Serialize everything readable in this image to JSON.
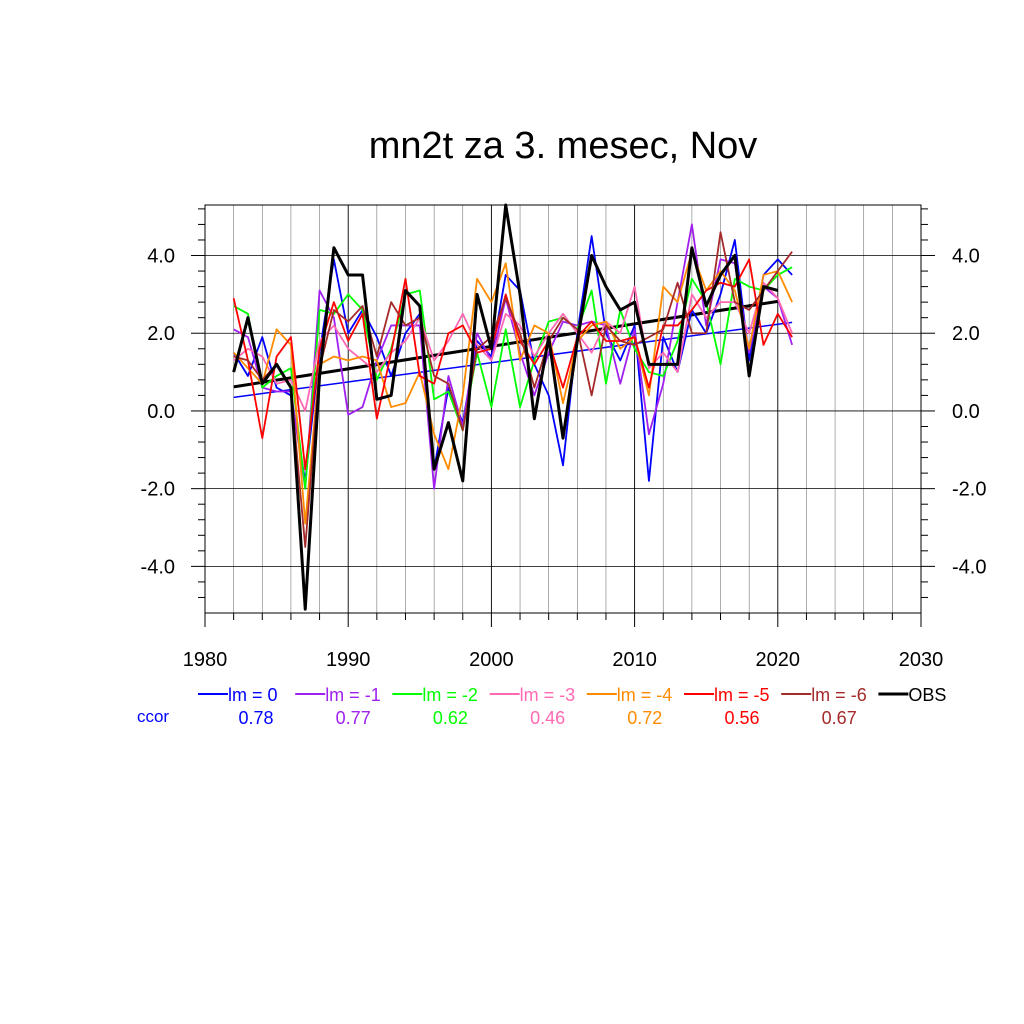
{
  "chart_data": {
    "type": "line",
    "title": "mn2t za 3. mesec, Nov",
    "xlabel": "",
    "ylabel": "",
    "xlim": [
      1980,
      2030
    ],
    "ylim": [
      -5.2,
      5.3
    ],
    "xticks": [
      1980,
      1990,
      2000,
      2010,
      2020,
      2030
    ],
    "xtick_labels": [
      "1980",
      "1990",
      "2000",
      "2010",
      "2020",
      "2030"
    ],
    "yticks": [
      -4,
      -2,
      0,
      2,
      4
    ],
    "ytick_labels": [
      "-4.0",
      "-2.0",
      "0.0",
      "2.0",
      "4.0"
    ],
    "grid": true,
    "x": [
      1982,
      1983,
      1984,
      1985,
      1986,
      1987,
      1988,
      1989,
      1990,
      1991,
      1992,
      1993,
      1994,
      1995,
      1996,
      1997,
      1998,
      1999,
      2000,
      2001,
      2002,
      2003,
      2004,
      2005,
      2006,
      2007,
      2008,
      2009,
      2010,
      2011,
      2012,
      2013,
      2014,
      2015,
      2016,
      2017,
      2018,
      2019,
      2020,
      2021
    ],
    "series": [
      {
        "name": "lm = 0",
        "color": "#0000ff",
        "ccor": "0.78",
        "values": [
          1.5,
          0.9,
          1.9,
          0.6,
          0.4,
          -1.8,
          1.5,
          3.9,
          2.0,
          2.6,
          1.9,
          0.9,
          2.0,
          2.5,
          -1.5,
          0.6,
          -0.3,
          1.8,
          1.4,
          3.5,
          3.1,
          1.2,
          0.4,
          -1.4,
          2.0,
          4.5,
          2.0,
          1.3,
          2.2,
          -1.8,
          1.9,
          1.0,
          2.6,
          2.0,
          3.0,
          4.4,
          1.3,
          3.5,
          3.9,
          3.5
        ],
        "trend": [
          0.35,
          2.28
        ]
      },
      {
        "name": "lm = -1",
        "color": "#a020f0",
        "ccor": "0.77",
        "values": [
          2.1,
          1.9,
          0.6,
          0.5,
          0.5,
          -2.0,
          3.1,
          2.4,
          -0.1,
          0.1,
          1.3,
          2.2,
          2.2,
          2.2,
          -2.0,
          0.9,
          -0.4,
          2.0,
          1.3,
          2.9,
          1.5,
          0.4,
          1.5,
          2.3,
          2.2,
          2.3,
          2.2,
          0.7,
          2.1,
          -0.6,
          0.7,
          2.8,
          4.8,
          2.2,
          3.9,
          3.8,
          1.5,
          3.2,
          2.9,
          1.7
        ]
      },
      {
        "name": "lm = -2",
        "color": "#00ff00",
        "ccor": "0.62",
        "values": [
          2.7,
          2.5,
          0.6,
          0.9,
          1.1,
          -2.0,
          2.6,
          2.5,
          3.0,
          2.6,
          0.8,
          1.6,
          3.0,
          3.1,
          0.3,
          0.5,
          -0.5,
          1.5,
          0.1,
          2.1,
          0.1,
          1.3,
          2.3,
          2.4,
          2.1,
          3.1,
          0.7,
          2.6,
          1.6,
          1.0,
          0.9,
          1.8,
          3.4,
          2.8,
          1.2,
          3.4,
          3.2,
          3.1,
          3.5,
          3.7
        ]
      },
      {
        "name": "lm = -3",
        "color": "#ff69b4",
        "ccor": "0.46",
        "values": [
          1.3,
          1.6,
          1.4,
          0.7,
          0.8,
          0.0,
          1.8,
          2.2,
          1.6,
          1.3,
          1.0,
          1.5,
          1.8,
          2.4,
          1.3,
          1.8,
          2.5,
          1.7,
          1.3,
          2.5,
          2.2,
          1.4,
          2.0,
          2.5,
          2.0,
          1.5,
          2.3,
          2.0,
          3.2,
          1.1,
          1.5,
          1.0,
          3.0,
          2.4,
          2.8,
          2.8,
          2.0,
          3.3,
          2.9,
          2.0
        ]
      },
      {
        "name": "lm = -4",
        "color": "#ff8c00",
        "ccor": "0.72",
        "values": [
          1.5,
          1.1,
          0.7,
          2.1,
          1.7,
          -2.9,
          1.2,
          1.4,
          1.3,
          1.4,
          1.3,
          0.1,
          0.2,
          1.0,
          -0.6,
          -1.5,
          0.4,
          3.4,
          2.8,
          3.8,
          1.3,
          2.2,
          2.0,
          0.2,
          1.8,
          2.2,
          2.3,
          1.6,
          1.9,
          0.4,
          3.2,
          2.8,
          4.1,
          3.1,
          3.6,
          3.1,
          1.6,
          3.5,
          3.6,
          2.8
        ]
      },
      {
        "name": "lm = -5",
        "color": "#ff0000",
        "ccor": "0.56",
        "values": [
          2.9,
          1.3,
          -0.7,
          1.4,
          1.9,
          -1.5,
          1.6,
          2.8,
          1.8,
          2.5,
          -0.2,
          1.5,
          3.4,
          0.9,
          0.7,
          2.0,
          2.2,
          1.5,
          1.6,
          3.0,
          1.8,
          1.2,
          1.8,
          0.6,
          1.9,
          2.3,
          1.8,
          1.8,
          1.9,
          0.6,
          2.2,
          2.2,
          2.6,
          3.1,
          3.3,
          3.2,
          3.9,
          1.7,
          2.5,
          1.9
        ]
      },
      {
        "name": "lm = -6",
        "color": "#a52a2a",
        "ccor": "0.67",
        "values": [
          1.4,
          1.3,
          0.8,
          1.2,
          0.6,
          -3.5,
          1.1,
          2.6,
          2.3,
          2.7,
          1.4,
          2.8,
          2.2,
          2.4,
          0.9,
          0.7,
          -0.5,
          1.6,
          1.9,
          2.9,
          2.0,
          0.6,
          1.8,
          2.4,
          2.1,
          0.4,
          2.2,
          1.8,
          1.7,
          1.9,
          2.1,
          3.3,
          2.0,
          2.0,
          4.6,
          2.8,
          2.6,
          3.1,
          3.6,
          4.1
        ]
      },
      {
        "name": "OBS",
        "color": "#000000",
        "ccor": "",
        "values": [
          1.0,
          2.4,
          0.7,
          1.2,
          0.6,
          -5.1,
          0.9,
          4.2,
          3.5,
          3.5,
          0.3,
          0.4,
          3.1,
          2.7,
          -1.5,
          -0.3,
          -1.8,
          3.0,
          1.6,
          5.3,
          3.0,
          -0.2,
          1.9,
          -0.7,
          1.8,
          4.0,
          3.2,
          2.6,
          2.8,
          1.2,
          1.2,
          1.2,
          4.2,
          2.7,
          3.5,
          4.0,
          0.9,
          3.2,
          3.1,
          null
        ],
        "trend": [
          0.62,
          2.82
        ]
      }
    ],
    "legend_position": "bottom",
    "legend_prefix_label": "ccor"
  }
}
